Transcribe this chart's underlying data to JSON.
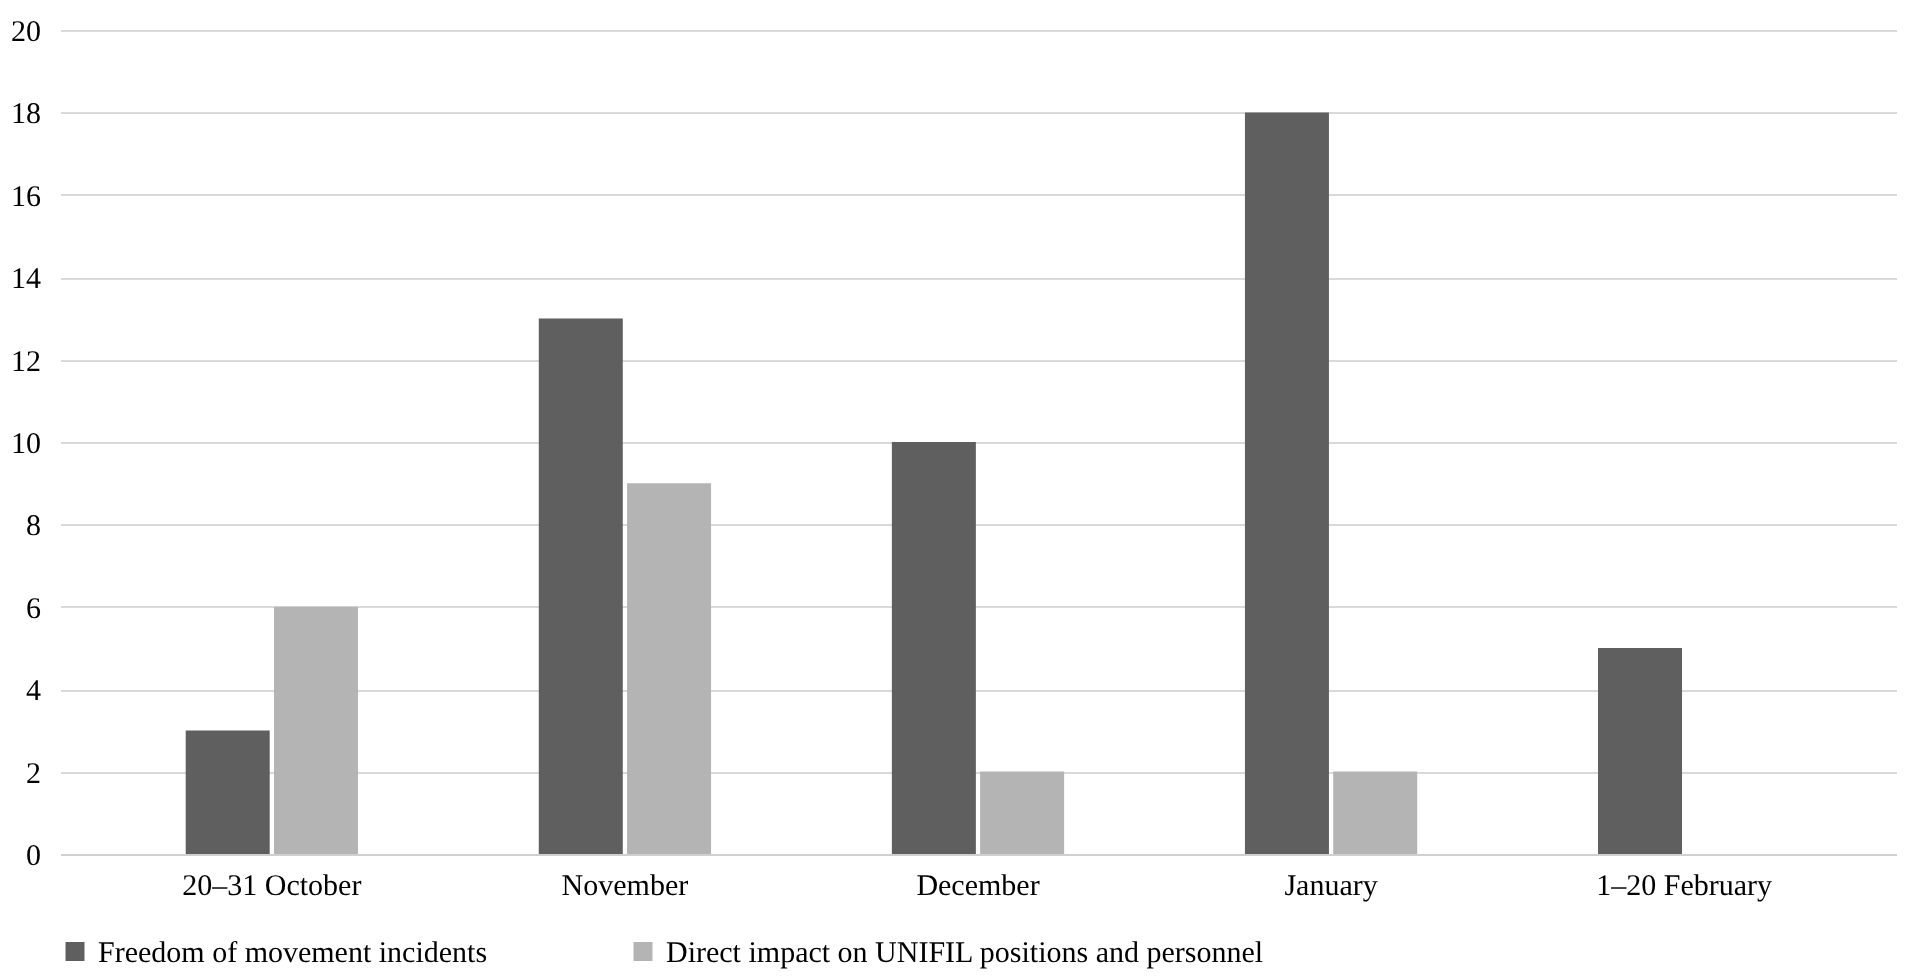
{
  "chart_data": {
    "type": "bar",
    "categories": [
      "20–31 October",
      "November",
      "December",
      "January",
      "1–20 February"
    ],
    "series": [
      {
        "name": "Freedom of movement incidents",
        "color": "#5f5f5f",
        "values": [
          3,
          13,
          10,
          18,
          5
        ]
      },
      {
        "name": "Direct impact on UNIFIL positions and personnel",
        "color": "#b4b4b4",
        "values": [
          6,
          9,
          2,
          2,
          0
        ]
      }
    ],
    "ylim": [
      0,
      20
    ],
    "yticks": [
      0,
      2,
      4,
      6,
      8,
      10,
      12,
      14,
      16,
      18,
      20
    ],
    "grid": "y",
    "legend": "bottom"
  }
}
